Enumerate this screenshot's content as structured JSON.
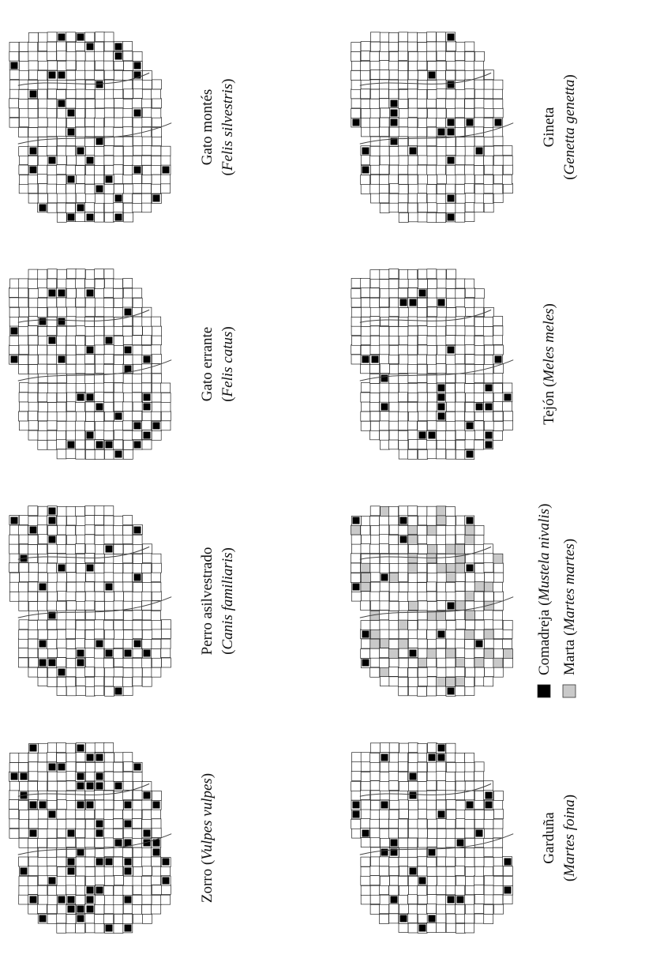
{
  "figure": {
    "orientation": "rotated-90-ccw",
    "colors": {
      "grid_line": "#222222",
      "presence_cell": "#000000",
      "marta_cell": "#c9c9c9",
      "background": "#ffffff"
    },
    "maps": [
      {
        "id": "gato-montes",
        "label_line1": "Gato montés",
        "label_line2": "(Felis silvestris)",
        "presence_count": 34
      },
      {
        "id": "gato-errante",
        "label_line1": "Gato errante",
        "label_line2": "(Felis catus)",
        "presence_count": 30
      },
      {
        "id": "perro-asilvestrado",
        "label_line1": "Perro asilvestrado",
        "label_line2": "(Canis familiaris)",
        "presence_count": 26
      },
      {
        "id": "zorro",
        "label_line1": "Zorro (Vulpes vulpes)",
        "label_line2": "",
        "presence_count": 60
      },
      {
        "id": "gineta",
        "label_line1": "Gineta",
        "label_line2": "(Genetta genetta)",
        "presence_count": 20
      },
      {
        "id": "tejon",
        "label_line1": "Tejón (Meles meles)",
        "label_line2": "",
        "presence_count": 24
      },
      {
        "id": "comadreja-marta",
        "label_line1": "",
        "label_line2": "",
        "presence_count": 14
      },
      {
        "id": "garduna",
        "label_line1": "Garduña",
        "label_line2": "(Martes foina)",
        "presence_count": 30
      }
    ],
    "legend": [
      {
        "label": "Comadreja (Mustela nivalis)",
        "swatch": "black"
      },
      {
        "label": "Marta (Martes martes)",
        "swatch": "gray"
      }
    ]
  }
}
